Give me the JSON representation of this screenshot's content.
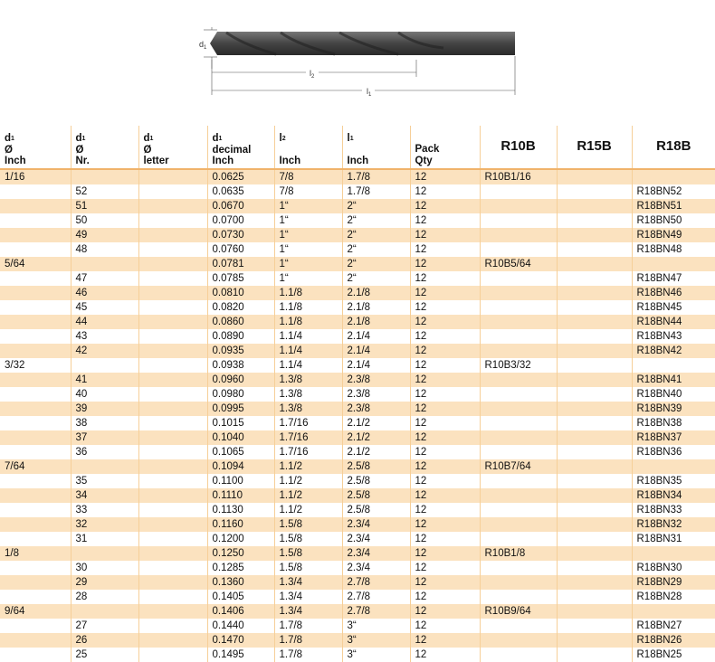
{
  "diagram": {
    "d_label": "d",
    "l2_label": "l",
    "l1_label": "l",
    "d_sub": "1",
    "l2_sub": "2",
    "l1_sub": "1"
  },
  "headers": [
    {
      "main": "d",
      "sub": "1",
      "l2": "Ø",
      "l3": "Inch"
    },
    {
      "main": "d",
      "sub": "1",
      "l2": "Ø",
      "l3": "Nr."
    },
    {
      "main": "d",
      "sub": "1",
      "l2": "Ø",
      "l3": "letter"
    },
    {
      "main": "d",
      "sub": "1",
      "l2": "decimal",
      "l3": "Inch"
    },
    {
      "main": "l",
      "sub": "2",
      "l2": "",
      "l3": "Inch"
    },
    {
      "main": "l",
      "sub": "1",
      "l2": "",
      "l3": "Inch"
    },
    {
      "main": "Pack",
      "sub": "",
      "l2": "Qty",
      "l3": ""
    },
    {
      "big": "R10B"
    },
    {
      "big": "R15B"
    },
    {
      "big": "R18B"
    }
  ],
  "rows": [
    [
      "1/16",
      "",
      "",
      "0.0625",
      "7/8",
      "1.7/8",
      "12",
      "R10B1/16",
      "",
      ""
    ],
    [
      "",
      "52",
      "",
      "0.0635",
      "7/8",
      "1.7/8",
      "12",
      "",
      "",
      "R18BN52"
    ],
    [
      "",
      "51",
      "",
      "0.0670",
      "1“",
      "2“",
      "12",
      "",
      "",
      "R18BN51"
    ],
    [
      "",
      "50",
      "",
      "0.0700",
      "1“",
      "2“",
      "12",
      "",
      "",
      "R18BN50"
    ],
    [
      "",
      "49",
      "",
      "0.0730",
      "1“",
      "2“",
      "12",
      "",
      "",
      "R18BN49"
    ],
    [
      "",
      "48",
      "",
      "0.0760",
      "1“",
      "2“",
      "12",
      "",
      "",
      "R18BN48"
    ],
    [
      "5/64",
      "",
      "",
      "0.0781",
      "1“",
      "2“",
      "12",
      "R10B5/64",
      "",
      ""
    ],
    [
      "",
      "47",
      "",
      "0.0785",
      "1“",
      "2“",
      "12",
      "",
      "",
      "R18BN47"
    ],
    [
      "",
      "46",
      "",
      "0.0810",
      "1.1/8",
      "2.1/8",
      "12",
      "",
      "",
      "R18BN46"
    ],
    [
      "",
      "45",
      "",
      "0.0820",
      "1.1/8",
      "2.1/8",
      "12",
      "",
      "",
      "R18BN45"
    ],
    [
      "",
      "44",
      "",
      "0.0860",
      "1.1/8",
      "2.1/8",
      "12",
      "",
      "",
      "R18BN44"
    ],
    [
      "",
      "43",
      "",
      "0.0890",
      "1.1/4",
      "2.1/4",
      "12",
      "",
      "",
      "R18BN43"
    ],
    [
      "",
      "42",
      "",
      "0.0935",
      "1.1/4",
      "2.1/4",
      "12",
      "",
      "",
      "R18BN42"
    ],
    [
      "3/32",
      "",
      "",
      "0.0938",
      "1.1/4",
      "2.1/4",
      "12",
      "R10B3/32",
      "",
      ""
    ],
    [
      "",
      "41",
      "",
      "0.0960",
      "1.3/8",
      "2.3/8",
      "12",
      "",
      "",
      "R18BN41"
    ],
    [
      "",
      "40",
      "",
      "0.0980",
      "1.3/8",
      "2.3/8",
      "12",
      "",
      "",
      "R18BN40"
    ],
    [
      "",
      "39",
      "",
      "0.0995",
      "1.3/8",
      "2.3/8",
      "12",
      "",
      "",
      "R18BN39"
    ],
    [
      "",
      "38",
      "",
      "0.1015",
      "1.7/16",
      "2.1/2",
      "12",
      "",
      "",
      "R18BN38"
    ],
    [
      "",
      "37",
      "",
      "0.1040",
      "1.7/16",
      "2.1/2",
      "12",
      "",
      "",
      "R18BN37"
    ],
    [
      "",
      "36",
      "",
      "0.1065",
      "1.7/16",
      "2.1/2",
      "12",
      "",
      "",
      "R18BN36"
    ],
    [
      "7/64",
      "",
      "",
      "0.1094",
      "1.1/2",
      "2.5/8",
      "12",
      "R10B7/64",
      "",
      ""
    ],
    [
      "",
      "35",
      "",
      "0.1100",
      "1.1/2",
      "2.5/8",
      "12",
      "",
      "",
      "R18BN35"
    ],
    [
      "",
      "34",
      "",
      "0.1110",
      "1.1/2",
      "2.5/8",
      "12",
      "",
      "",
      "R18BN34"
    ],
    [
      "",
      "33",
      "",
      "0.1130",
      "1.1/2",
      "2.5/8",
      "12",
      "",
      "",
      "R18BN33"
    ],
    [
      "",
      "32",
      "",
      "0.1160",
      "1.5/8",
      "2.3/4",
      "12",
      "",
      "",
      "R18BN32"
    ],
    [
      "",
      "31",
      "",
      "0.1200",
      "1.5/8",
      "2.3/4",
      "12",
      "",
      "",
      "R18BN31"
    ],
    [
      "1/8",
      "",
      "",
      "0.1250",
      "1.5/8",
      "2.3/4",
      "12",
      "R10B1/8",
      "",
      ""
    ],
    [
      "",
      "30",
      "",
      "0.1285",
      "1.5/8",
      "2.3/4",
      "12",
      "",
      "",
      "R18BN30"
    ],
    [
      "",
      "29",
      "",
      "0.1360",
      "1.3/4",
      "2.7/8",
      "12",
      "",
      "",
      "R18BN29"
    ],
    [
      "",
      "28",
      "",
      "0.1405",
      "1.3/4",
      "2.7/8",
      "12",
      "",
      "",
      "R18BN28"
    ],
    [
      "9/64",
      "",
      "",
      "0.1406",
      "1.3/4",
      "2.7/8",
      "12",
      "R10B9/64",
      "",
      ""
    ],
    [
      "",
      "27",
      "",
      "0.1440",
      "1.7/8",
      "3“",
      "12",
      "",
      "",
      "R18BN27"
    ],
    [
      "",
      "26",
      "",
      "0.1470",
      "1.7/8",
      "3“",
      "12",
      "",
      "",
      "R18BN26"
    ],
    [
      "",
      "25",
      "",
      "0.1495",
      "1.7/8",
      "3“",
      "12",
      "",
      "",
      "R18BN25"
    ]
  ]
}
